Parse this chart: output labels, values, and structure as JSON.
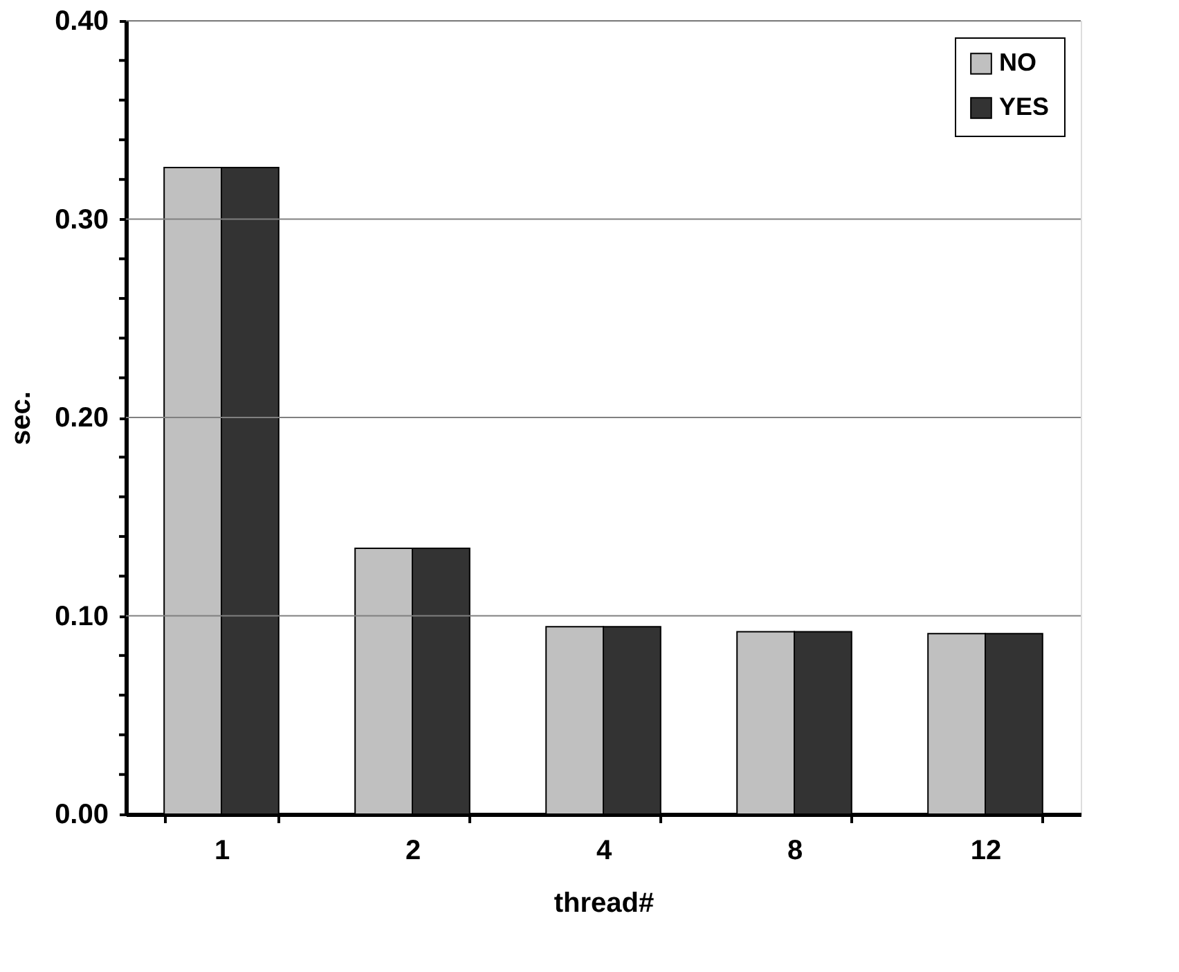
{
  "chart_data": {
    "type": "bar",
    "xlabel": "thread#",
    "ylabel": "sec.",
    "categories": [
      "1",
      "2",
      "4",
      "8",
      "12"
    ],
    "series": [
      {
        "name": "NO",
        "color": "#c0c0c0",
        "values": [
          0.326,
          0.134,
          0.0945,
          0.092,
          0.091
        ]
      },
      {
        "name": "YES",
        "color": "#333333",
        "values": [
          0.326,
          0.134,
          0.0945,
          0.092,
          0.091
        ]
      }
    ],
    "ylim": [
      0,
      0.4
    ],
    "yticks": [
      {
        "value": 0,
        "label": "0.00"
      },
      {
        "value": 0.02,
        "label": null
      },
      {
        "value": 0.04,
        "label": null
      },
      {
        "value": 0.06,
        "label": null
      },
      {
        "value": 0.08,
        "label": null
      },
      {
        "value": 0.1,
        "label": "0.10"
      },
      {
        "value": 0.12,
        "label": null
      },
      {
        "value": 0.14,
        "label": null
      },
      {
        "value": 0.16,
        "label": null
      },
      {
        "value": 0.18,
        "label": null
      },
      {
        "value": 0.2,
        "label": "0.20"
      },
      {
        "value": 0.22,
        "label": null
      },
      {
        "value": 0.24,
        "label": null
      },
      {
        "value": 0.26,
        "label": null
      },
      {
        "value": 0.28,
        "label": null
      },
      {
        "value": 0.3,
        "label": "0.30"
      },
      {
        "value": 0.32,
        "label": null
      },
      {
        "value": 0.34,
        "label": null
      },
      {
        "value": 0.36,
        "label": null
      },
      {
        "value": 0.38,
        "label": null
      },
      {
        "value": 0.4,
        "label": "0.40"
      }
    ],
    "grid": "y",
    "legend": "top right"
  }
}
